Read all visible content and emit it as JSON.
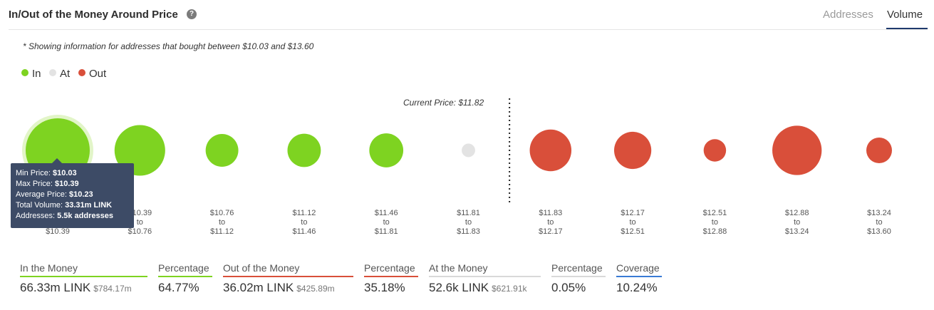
{
  "header": {
    "title": "In/Out of the Money Around Price",
    "help_icon": "?",
    "tabs": [
      {
        "label": "Addresses",
        "active": false
      },
      {
        "label": "Volume",
        "active": true
      }
    ]
  },
  "note": "* Showing information for addresses that bought between $10.03 and $13.60",
  "legend": [
    {
      "label": "In",
      "color": "#7ed321"
    },
    {
      "label": "At",
      "color": "#e3e3e3"
    },
    {
      "label": "Out",
      "color": "#d94f3a"
    }
  ],
  "current_price_label": "Current Price: $11.82",
  "chart_data": {
    "type": "scatter",
    "categories": [
      [
        "$10.03",
        "to",
        "$10.39"
      ],
      [
        "$10.39",
        "to",
        "$10.76"
      ],
      [
        "$10.76",
        "to",
        "$11.12"
      ],
      [
        "$11.12",
        "to",
        "$11.46"
      ],
      [
        "$11.46",
        "to",
        "$11.81"
      ],
      [
        "$11.81",
        "to",
        "$11.83"
      ],
      [
        "$11.83",
        "to",
        "$12.17"
      ],
      [
        "$12.17",
        "to",
        "$12.51"
      ],
      [
        "$12.51",
        "to",
        "$12.88"
      ],
      [
        "$12.88",
        "to",
        "$13.24"
      ],
      [
        "$13.24",
        "to",
        "$13.60"
      ]
    ],
    "status": [
      "In",
      "In",
      "In",
      "In",
      "In",
      "At",
      "Out",
      "Out",
      "Out",
      "Out",
      "Out"
    ],
    "relative_volume": [
      1.0,
      0.79,
      0.51,
      0.52,
      0.53,
      0.21,
      0.65,
      0.58,
      0.35,
      0.77,
      0.4
    ],
    "colors": {
      "In": "#7ed321",
      "At": "#e3e3e3",
      "Out": "#d94f3a"
    },
    "current_price_after_index": 5
  },
  "tooltip": {
    "rows": [
      {
        "label": "Min Price: ",
        "value": "$10.03"
      },
      {
        "label": "Max Price: ",
        "value": "$10.39"
      },
      {
        "label": "Average Price: ",
        "value": "$10.23"
      },
      {
        "label": "Total Volume: ",
        "value": "33.31m LINK"
      },
      {
        "label": "Addresses: ",
        "value": "5.5k addresses"
      }
    ]
  },
  "stats": [
    {
      "label": "In the Money",
      "value": "66.33m LINK",
      "sub": "$784.17m",
      "color": "#7ed321"
    },
    {
      "label": "Percentage",
      "value": "64.77%",
      "sub": "",
      "color": "#7ed321"
    },
    {
      "label": "Out of the Money",
      "value": "36.02m LINK",
      "sub": "$425.89m",
      "color": "#d94f3a"
    },
    {
      "label": "Percentage",
      "value": "35.18%",
      "sub": "",
      "color": "#d94f3a"
    },
    {
      "label": "At the Money",
      "value": "52.6k LINK",
      "sub": "$621.91k",
      "color": "#d9d9d9"
    },
    {
      "label": "Percentage",
      "value": "0.05%",
      "sub": "",
      "color": "#d9d9d9"
    },
    {
      "label": "Coverage",
      "value": "10.24%",
      "sub": "",
      "color": "#3a7bd5"
    }
  ]
}
